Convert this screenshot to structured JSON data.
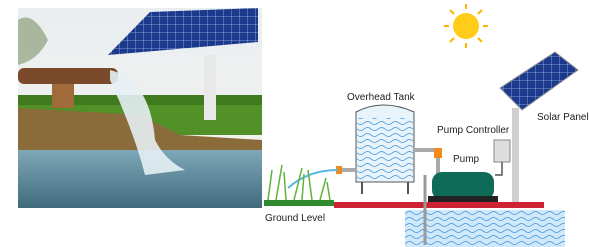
{
  "labels": {
    "overhead_tank": "Overhead Tank",
    "pump_controller": "Pump Controller",
    "solar_panel": "Solar Panel",
    "pump": "Pump",
    "ground_level": "Ground Level"
  }
}
